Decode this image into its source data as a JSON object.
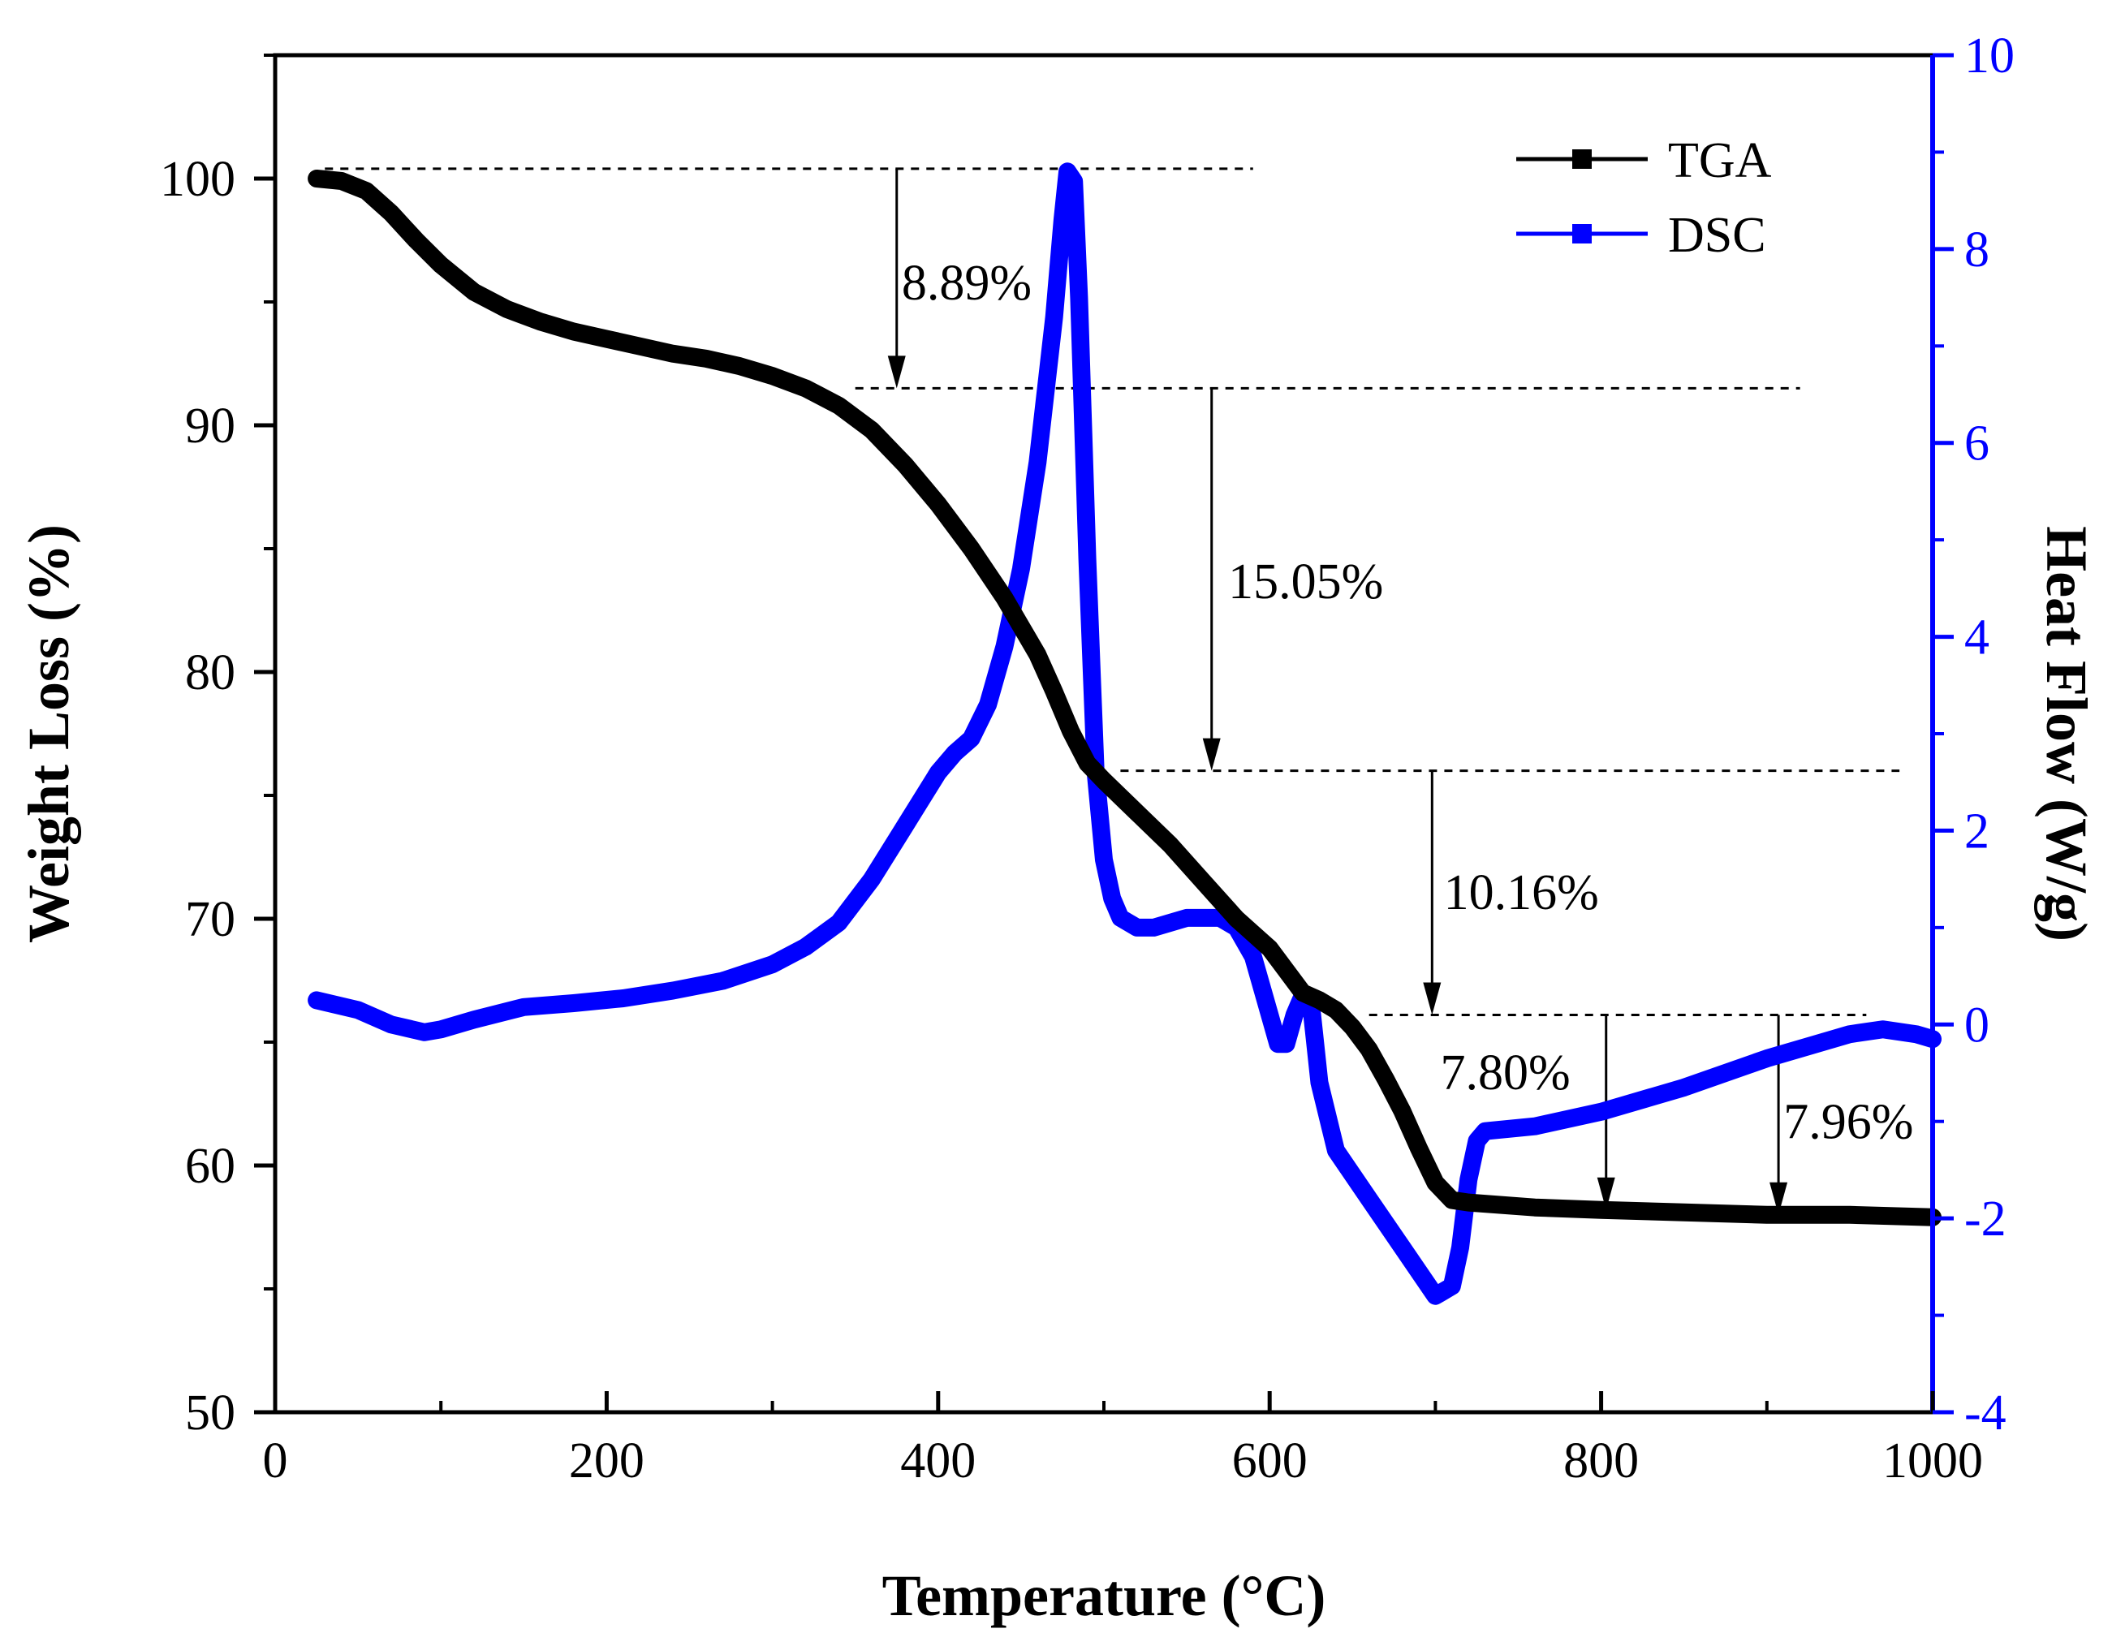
{
  "chart_data": {
    "type": "line",
    "title": "",
    "xlabel": "Temperature (°C)",
    "ylabel_left": "Weight Loss (%)",
    "ylabel_right": "Heat Flow (W/g)",
    "xlim": [
      0,
      1000
    ],
    "ylim_left": [
      50,
      105
    ],
    "ylim_right": [
      -4,
      10
    ],
    "x_ticks": [
      0,
      200,
      400,
      600,
      800,
      1000
    ],
    "y_left_ticks": [
      50,
      60,
      70,
      80,
      90,
      100
    ],
    "y_right_ticks": [
      -4,
      -2,
      0,
      2,
      4,
      6,
      8,
      10
    ],
    "grid": false,
    "legend_position": "top-right",
    "colors": {
      "tga": "#000000",
      "dsc": "#0000ff",
      "axis_right": "#0000ff"
    },
    "series": [
      {
        "name": "TGA",
        "axis": "left",
        "color": "#000000",
        "x": [
          25,
          40,
          55,
          70,
          85,
          100,
          120,
          140,
          160,
          180,
          200,
          220,
          240,
          260,
          280,
          300,
          320,
          340,
          360,
          380,
          400,
          420,
          440,
          460,
          470,
          480,
          490,
          500,
          520,
          540,
          560,
          580,
          600,
          610,
          620,
          630,
          640,
          650,
          660,
          670,
          680,
          690,
          700,
          710,
          720,
          760,
          800,
          850,
          900,
          950,
          1000
        ],
        "values": [
          100.0,
          99.9,
          99.5,
          98.6,
          97.5,
          96.5,
          95.4,
          94.7,
          94.2,
          93.8,
          93.5,
          93.2,
          92.9,
          92.7,
          92.4,
          92.0,
          91.5,
          90.8,
          89.8,
          88.4,
          86.8,
          85.0,
          83.0,
          80.7,
          79.2,
          77.6,
          76.3,
          75.6,
          74.3,
          73.0,
          71.5,
          70.0,
          68.8,
          67.9,
          67.0,
          66.7,
          66.3,
          65.6,
          64.7,
          63.5,
          62.2,
          60.7,
          59.3,
          58.6,
          58.5,
          58.3,
          58.2,
          58.1,
          58.0,
          58.0,
          57.9
        ]
      },
      {
        "name": "DSC",
        "axis": "right",
        "color": "#0000ff",
        "x": [
          25,
          50,
          70,
          90,
          100,
          120,
          150,
          180,
          210,
          240,
          270,
          300,
          320,
          340,
          360,
          380,
          400,
          410,
          420,
          430,
          440,
          450,
          460,
          470,
          475,
          478,
          482,
          485,
          490,
          495,
          500,
          505,
          510,
          520,
          530,
          540,
          550,
          560,
          570,
          580,
          590,
          600,
          605,
          610,
          615,
          620,
          625,
          630,
          640,
          660,
          680,
          700,
          710,
          715,
          720,
          725,
          730,
          760,
          800,
          850,
          900,
          950,
          970,
          990,
          1000
        ],
        "values": [
          0.25,
          0.15,
          0.0,
          -0.08,
          -0.05,
          0.05,
          0.18,
          0.22,
          0.27,
          0.35,
          0.45,
          0.62,
          0.8,
          1.05,
          1.5,
          2.05,
          2.6,
          2.8,
          2.95,
          3.3,
          3.9,
          4.7,
          5.8,
          7.3,
          8.3,
          8.8,
          8.7,
          7.5,
          4.8,
          2.6,
          1.7,
          1.3,
          1.1,
          1.0,
          1.0,
          1.05,
          1.1,
          1.1,
          1.1,
          1.0,
          0.7,
          0.1,
          -0.2,
          -0.2,
          0.1,
          0.3,
          0.2,
          -0.6,
          -1.3,
          -1.8,
          -2.3,
          -2.8,
          -2.7,
          -2.3,
          -1.6,
          -1.2,
          -1.1,
          -1.05,
          -0.9,
          -0.65,
          -0.35,
          -0.1,
          -0.05,
          -0.1,
          -0.15
        ]
      }
    ],
    "annotations": {
      "levels": [
        {
          "y": 100.4,
          "x_from": 30,
          "x_to": 590
        },
        {
          "y": 91.5,
          "x_from": 350,
          "x_to": 920
        },
        {
          "y": 76.0,
          "x_from": 510,
          "x_to": 980
        },
        {
          "y": 66.1,
          "x_from": 660,
          "x_to": 960
        }
      ],
      "arrows": [
        {
          "x": 375,
          "y_from": 100.4,
          "y_to": 91.5
        },
        {
          "x": 565,
          "y_from": 91.5,
          "y_to": 76.0
        },
        {
          "x": 698,
          "y_from": 76.0,
          "y_to": 66.1
        },
        {
          "x": 803,
          "y_from": 66.1,
          "y_to": 58.2
        },
        {
          "x": 907,
          "y_from": 66.1,
          "y_to": 58.0
        }
      ],
      "labels": [
        {
          "text": "8.89%",
          "x": 378,
          "y": 95.1
        },
        {
          "text": "15.05%",
          "x": 575,
          "y": 83.0
        },
        {
          "text": "10.16%",
          "x": 705,
          "y": 70.4
        },
        {
          "text": "7.80%",
          "x": 703,
          "y": 63.1
        },
        {
          "text": "7.96%",
          "x": 910,
          "y": 61.1
        }
      ]
    }
  }
}
